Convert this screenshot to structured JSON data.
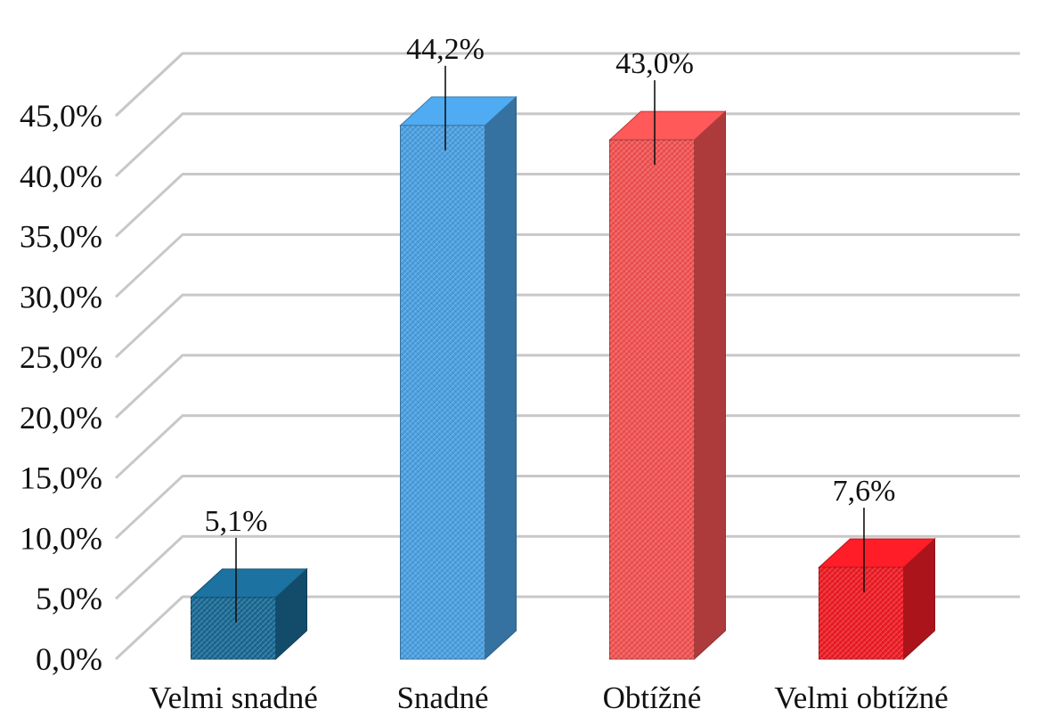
{
  "chart_data": {
    "type": "bar",
    "title": "",
    "xlabel": "",
    "ylabel": "",
    "categories": [
      "Velmi snadné",
      "Snadné",
      "Obtížné",
      "Velmi obtížné"
    ],
    "values": [
      5.1,
      44.2,
      43.0,
      7.6
    ],
    "data_labels": [
      "5,1%",
      "44,2%",
      "43,0%",
      "7,6%"
    ],
    "y_ticks": [
      "0,0%",
      "5,0%",
      "10,0%",
      "15,0%",
      "20,0%",
      "25,0%",
      "30,0%",
      "35,0%",
      "40,0%",
      "45,0%"
    ],
    "ylim": [
      0,
      45
    ],
    "grid": true,
    "style": "3d-column",
    "colors": [
      "#1a6a94",
      "#4a9fe0",
      "#f25252",
      "#ee1c25"
    ]
  }
}
